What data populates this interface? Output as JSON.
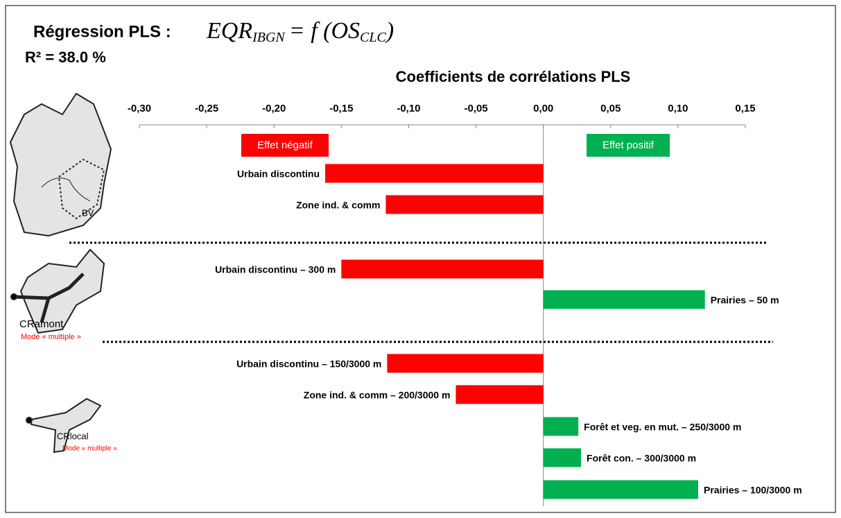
{
  "header": {
    "title": "Régression PLS :",
    "formula": {
      "lhs": "EQR",
      "lhs_sub": "IBGN",
      "rhs": "= f (OS",
      "rhs_sub": "CLC",
      "close": ")"
    },
    "r2": "R² = 38.0 %"
  },
  "chart_data": {
    "type": "hbar",
    "title": "Coefficients de corrélations PLS",
    "categories": [
      "Urbain discontinu",
      "Zone ind. & comm",
      "Urbain discontinu – 300 m",
      "Prairies – 50 m",
      "Urbain discontinu – 150/3000 m",
      "Zone ind. & comm – 200/3000 m",
      "Forêt et veg. en mut. – 250/3000 m",
      "Forêt con. – 300/3000 m",
      "Prairies – 100/3000 m"
    ],
    "values": [
      -0.162,
      -0.117,
      -0.15,
      0.12,
      -0.116,
      -0.065,
      0.026,
      0.028,
      0.115
    ],
    "negative_color": "#ff0000",
    "positive_color": "#00b050",
    "xlim": [
      -0.3,
      0.15
    ],
    "xticks": [
      {
        "value": -0.3,
        "label": "-0,30"
      },
      {
        "value": -0.25,
        "label": "-0,25"
      },
      {
        "value": -0.2,
        "label": "-0,20"
      },
      {
        "value": -0.15,
        "label": "-0,15"
      },
      {
        "value": -0.1,
        "label": "-0,10"
      },
      {
        "value": -0.05,
        "label": "-0,05"
      },
      {
        "value": 0,
        "label": "0,00"
      },
      {
        "value": 0.05,
        "label": "0,05"
      },
      {
        "value": 0.1,
        "label": "0,10"
      },
      {
        "value": 0.15,
        "label": "0,15"
      }
    ],
    "annotations": {
      "negative": "Effet négatif",
      "positive": "Effet positif"
    }
  },
  "diagrams": {
    "bv": "BV",
    "cramont": "CRamont",
    "cramont_mode": "Mode « multiple »",
    "crlocal": "CRlocal",
    "crlocal_mode": "Mode « multiple »"
  }
}
